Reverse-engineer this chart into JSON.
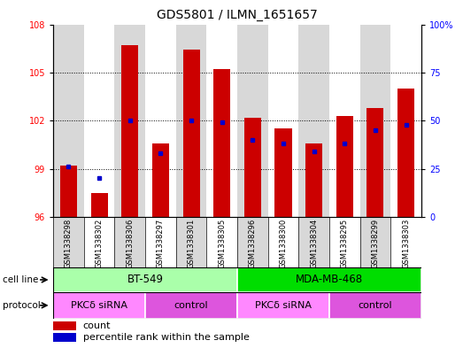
{
  "title": "GDS5801 / ILMN_1651657",
  "samples": [
    "GSM1338298",
    "GSM1338302",
    "GSM1338306",
    "GSM1338297",
    "GSM1338301",
    "GSM1338305",
    "GSM1338296",
    "GSM1338300",
    "GSM1338304",
    "GSM1338295",
    "GSM1338299",
    "GSM1338303"
  ],
  "count_values": [
    99.2,
    97.5,
    106.7,
    100.6,
    106.4,
    105.2,
    102.2,
    101.5,
    100.6,
    102.3,
    102.8,
    104.0
  ],
  "percentile_values": [
    26,
    20,
    50,
    33,
    50,
    49,
    40,
    38,
    34,
    38,
    45,
    48
  ],
  "ylim_left": [
    96,
    108
  ],
  "ylim_right": [
    0,
    100
  ],
  "yticks_left": [
    96,
    99,
    102,
    105,
    108
  ],
  "yticks_right": [
    0,
    25,
    50,
    75,
    100
  ],
  "bar_color": "#cc0000",
  "dot_color": "#0000cc",
  "base_value": 96,
  "cell_line_groups": [
    {
      "label": "BT-549",
      "start": 0,
      "end": 5,
      "color": "#aaffaa"
    },
    {
      "label": "MDA-MB-468",
      "start": 6,
      "end": 11,
      "color": "#00dd00"
    }
  ],
  "protocol_groups": [
    {
      "label": "PKCδ siRNA",
      "start": 0,
      "end": 2,
      "color": "#ff88ff"
    },
    {
      "label": "control",
      "start": 3,
      "end": 5,
      "color": "#dd55dd"
    },
    {
      "label": "PKCδ siRNA",
      "start": 6,
      "end": 8,
      "color": "#ff88ff"
    },
    {
      "label": "control",
      "start": 9,
      "end": 11,
      "color": "#dd55dd"
    }
  ],
  "bg_colors": [
    "#d8d8d8",
    "#ffffff"
  ],
  "title_fontsize": 10,
  "tick_fontsize": 7,
  "label_fontsize": 8,
  "sample_fontsize": 6
}
